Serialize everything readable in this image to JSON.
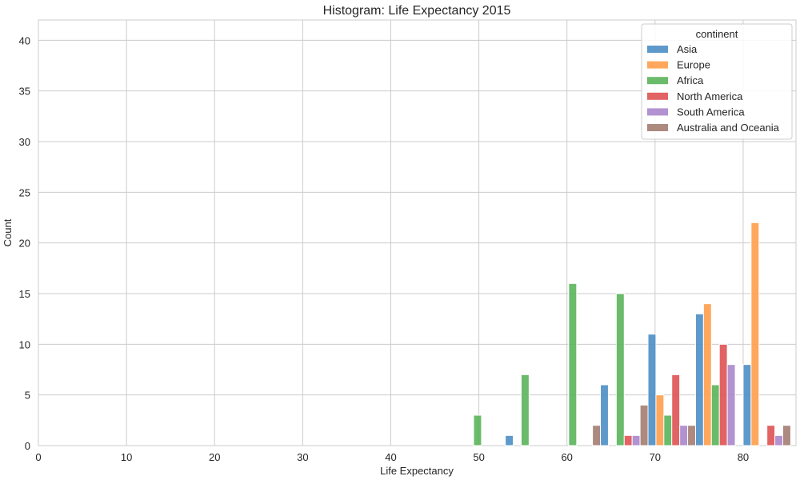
{
  "chart_data": {
    "type": "bar",
    "title": "Histogram: Life Expectancy 2015",
    "xlabel": "Life Expectancy",
    "ylabel": "Count",
    "xlim": [
      0,
      86
    ],
    "ylim": [
      0,
      42
    ],
    "xticks": [
      0,
      10,
      20,
      30,
      40,
      50,
      60,
      70,
      80
    ],
    "yticks": [
      0,
      5,
      10,
      15,
      20,
      25,
      30,
      35,
      40
    ],
    "grid": true,
    "legend": {
      "title": "continent",
      "position": "top-right"
    },
    "bin_width": 5.4,
    "series": [
      {
        "name": "Asia",
        "color": "#4c8ec5",
        "bins": [
          {
            "x": 53.0,
            "count": 1
          },
          {
            "x": 63.8,
            "count": 6
          },
          {
            "x": 69.2,
            "count": 11
          },
          {
            "x": 74.6,
            "count": 13
          },
          {
            "x": 80.0,
            "count": 8
          }
        ]
      },
      {
        "name": "Europe",
        "color": "#ff9f4b",
        "bins": [
          {
            "x": 69.2,
            "count": 5
          },
          {
            "x": 74.6,
            "count": 14
          },
          {
            "x": 80.0,
            "count": 22
          }
        ]
      },
      {
        "name": "Africa",
        "color": "#5ab45a",
        "bins": [
          {
            "x": 47.6,
            "count": 3
          },
          {
            "x": 53.0,
            "count": 7
          },
          {
            "x": 58.4,
            "count": 16
          },
          {
            "x": 63.8,
            "count": 15
          },
          {
            "x": 69.2,
            "count": 3
          },
          {
            "x": 74.6,
            "count": 6
          }
        ]
      },
      {
        "name": "North America",
        "color": "#df5253",
        "bins": [
          {
            "x": 63.8,
            "count": 1
          },
          {
            "x": 69.2,
            "count": 7
          },
          {
            "x": 74.6,
            "count": 10
          },
          {
            "x": 80.0,
            "count": 2
          }
        ]
      },
      {
        "name": "South America",
        "color": "#aa86cb",
        "bins": [
          {
            "x": 63.8,
            "count": 1
          },
          {
            "x": 69.2,
            "count": 2
          },
          {
            "x": 74.6,
            "count": 8
          },
          {
            "x": 80.0,
            "count": 1
          }
        ]
      },
      {
        "name": "Australia and Oceania",
        "color": "#a37d71",
        "bins": [
          {
            "x": 58.4,
            "count": 2
          },
          {
            "x": 63.8,
            "count": 4
          },
          {
            "x": 69.2,
            "count": 2
          },
          {
            "x": 80.0,
            "count": 2
          }
        ]
      }
    ]
  }
}
